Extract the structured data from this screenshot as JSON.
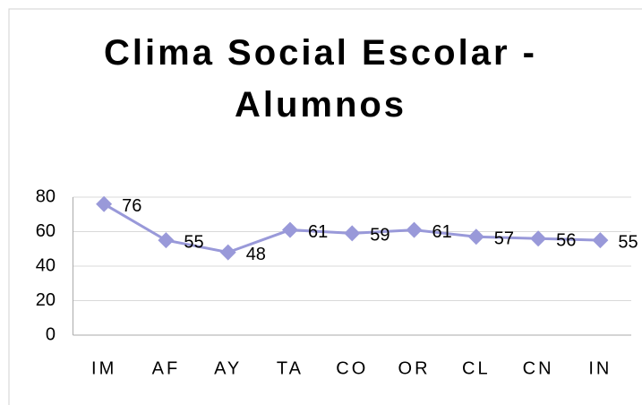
{
  "chart_data": {
    "type": "line",
    "title": "Clima Social Escolar - Alumnos",
    "categories": [
      "IM",
      "AF",
      "AY",
      "TA",
      "CO",
      "OR",
      "CL",
      "CN",
      "IN"
    ],
    "values": [
      76,
      55,
      48,
      61,
      59,
      61,
      57,
      56,
      55
    ],
    "color": "#9999d9",
    "ylim": [
      0,
      80
    ],
    "yticks": [
      0,
      20,
      40,
      60,
      80
    ],
    "grid": true
  }
}
